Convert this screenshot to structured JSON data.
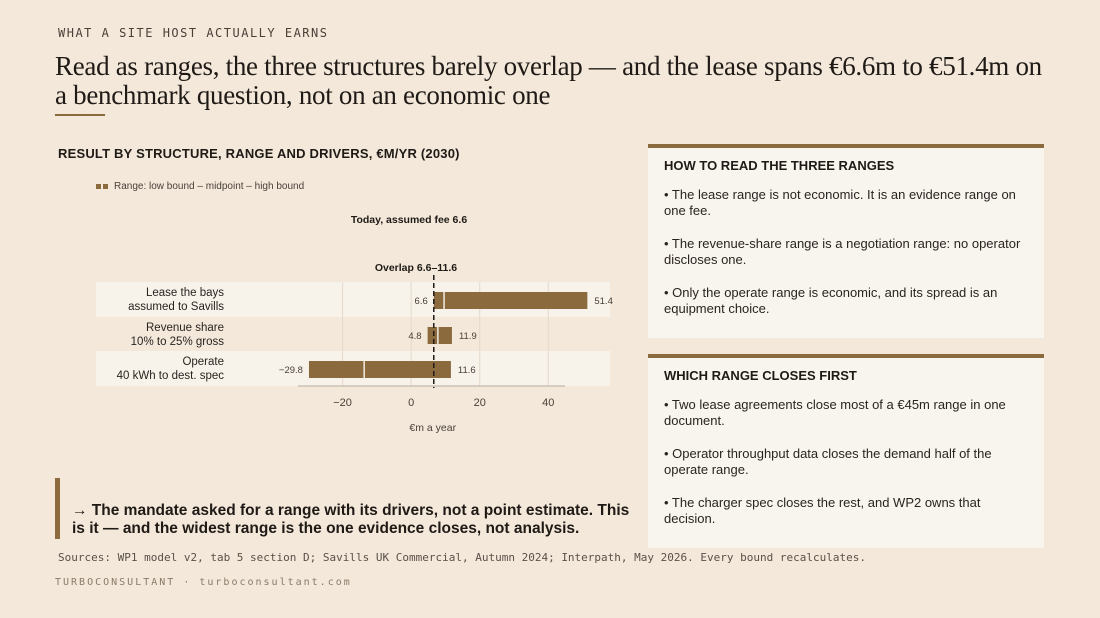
{
  "kicker": "WHAT A SITE HOST ACTUALLY EARNS",
  "headline": "Read as ranges, the three structures barely overlap — and the lease spans €6.6m to €51.4m on a benchmark question, not on an economic one",
  "chart_title": "RESULT BY STRUCTURE, RANGE AND DRIVERS, €M/YR (2030)",
  "legend_label": "Range: low bound – midpoint – high bound",
  "chart_data": {
    "type": "bar",
    "orientation": "horizontal",
    "bar_style": "floating-range",
    "xlabel": "€m a year",
    "ylabel": "",
    "xlim": [
      -33,
      58
    ],
    "xticks": [
      -20,
      0,
      20,
      40
    ],
    "grid": true,
    "legend_position": "top-left",
    "categories": [
      [
        "Lease the bays",
        "assumed to Savills"
      ],
      [
        "Revenue share",
        "10% to 25% gross"
      ],
      [
        "Operate",
        "40 kWh to dest. spec"
      ]
    ],
    "rows": [
      {
        "low": 6.6,
        "mid": 9.6,
        "high": 51.4,
        "low_label": "6.6",
        "high_label": "51.4"
      },
      {
        "low": 4.8,
        "mid": 7.8,
        "high": 11.9,
        "low_label": "4.8",
        "high_label": "11.9"
      },
      {
        "low": -29.8,
        "mid": -13.7,
        "high": 11.6,
        "low_label": "−29.8",
        "high_label": "11.6"
      }
    ],
    "reference_line": {
      "x": 6.6,
      "label": "Today, assumed fee 6.6"
    },
    "overlap": {
      "from": 6.6,
      "to": 11.6,
      "label": "Overlap 6.6–11.6"
    },
    "colors": {
      "bar": "#8b6a3e",
      "mid": "#f3ece2",
      "band": "#f7f2ea",
      "axis": "#b8ab9c",
      "grid": "#e4d9cb"
    }
  },
  "callout": "→  The mandate asked for a range with its drivers, not a point estimate. This is it — and the widest range is the one evidence closes, not analysis.",
  "sources": "Sources: WP1 model v2, tab 5 section D; Savills UK Commercial, Autumn 2024; Interpath, May 2026. Every bound recalculates.",
  "footer": "TURBOCONSULTANT · turboconsultant.com",
  "panels": [
    {
      "title": "HOW TO READ THE THREE RANGES",
      "items": [
        "•  The lease range is not economic. It is an evidence range on one fee.",
        "•  The revenue-share range is a negotiation range: no operator discloses one.",
        "•  Only the operate range is economic, and its spread is an equipment choice."
      ]
    },
    {
      "title": "WHICH RANGE CLOSES FIRST",
      "items": [
        "•  Two lease agreements close most of a €45m range in one document.",
        "•  Operator throughput data closes the demand half of the operate range.",
        "•  The charger spec closes the rest, and WP2 owns that decision."
      ]
    }
  ]
}
